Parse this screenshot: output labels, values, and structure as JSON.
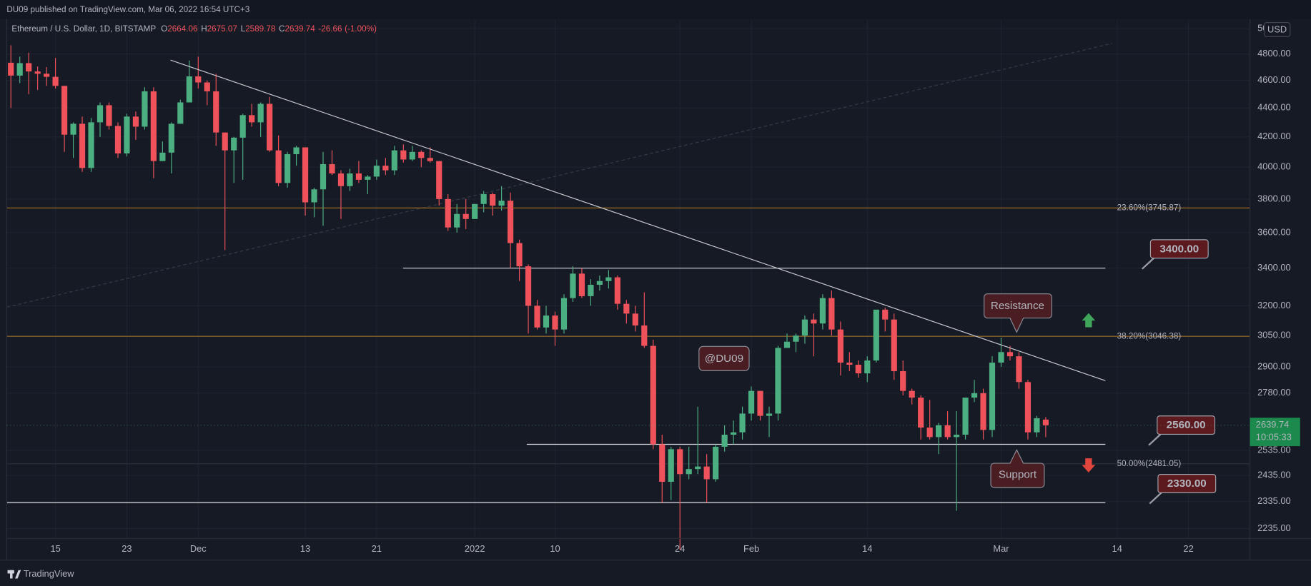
{
  "header": {
    "published": "DU09 published on TradingView.com, Mar 06, 2022 16:54 UTC+3"
  },
  "footer": {
    "brand": "TradingView"
  },
  "chart_data": {
    "type": "candlestick",
    "title": "Ethereum / U.S. Dollar, 1D, BITSTAMP",
    "ohlc_labels": [
      "O",
      "H",
      "L",
      "C"
    ],
    "change": -26.66,
    "change_percent": {
      "value": -1.0,
      "label": "(-1.00%)"
    },
    "currency": "USD",
    "countdown": "10:05:33",
    "up_color": "#4caf82",
    "down_color": "#f0525b",
    "log_scale": true,
    "grid": true,
    "categories": [
      null,
      null,
      null,
      null,
      null,
      "15",
      null,
      null,
      null,
      null,
      null,
      null,
      null,
      "23",
      null,
      null,
      null,
      null,
      null,
      null,
      null,
      "Dec",
      null,
      null,
      null,
      null,
      null,
      null,
      null,
      null,
      null,
      null,
      null,
      "13",
      null,
      null,
      null,
      null,
      null,
      null,
      null,
      "21",
      null,
      null,
      null,
      null,
      null,
      null,
      null,
      null,
      null,
      null,
      "2022",
      null,
      null,
      null,
      null,
      null,
      null,
      null,
      null,
      "10",
      null,
      null,
      null,
      null,
      null,
      null,
      null,
      null,
      null,
      null,
      null,
      null,
      null,
      "24",
      null,
      null,
      null,
      null,
      null,
      null,
      null,
      "Feb",
      null,
      null,
      null,
      null,
      null,
      null,
      null,
      null,
      null,
      null,
      null,
      null,
      "14",
      null,
      null,
      null,
      null,
      null,
      null,
      null,
      null,
      null,
      null,
      null,
      null,
      null,
      null,
      "Mar",
      null,
      null,
      null,
      null,
      null,
      null,
      null,
      null,
      null,
      null,
      null,
      null,
      "14",
      null,
      null,
      null,
      null,
      null,
      null,
      null,
      "22",
      null,
      null,
      null,
      null,
      null,
      null
    ],
    "candles": [
      [
        4733,
        4868,
        4400,
        4636
      ],
      [
        4636,
        4780,
        4580,
        4730
      ],
      [
        4730,
        4810,
        4500,
        4667
      ],
      [
        4667,
        4705,
        4530,
        4650
      ],
      [
        4650,
        4700,
        4560,
        4627
      ],
      [
        4627,
        4770,
        4540,
        4560
      ],
      [
        4560,
        4560,
        4100,
        4215
      ],
      [
        4215,
        4300,
        4060,
        4290
      ],
      [
        4290,
        4340,
        3970,
        3995
      ],
      [
        3995,
        4330,
        3970,
        4300
      ],
      [
        4300,
        4440,
        4200,
        4420
      ],
      [
        4420,
        4440,
        4250,
        4275
      ],
      [
        4275,
        4300,
        4060,
        4090
      ],
      [
        4090,
        4360,
        4070,
        4340
      ],
      [
        4340,
        4375,
        4180,
        4270
      ],
      [
        4270,
        4550,
        4250,
        4520
      ],
      [
        4520,
        4550,
        3930,
        4040
      ],
      [
        4040,
        4170,
        4040,
        4095
      ],
      [
        4095,
        4300,
        3960,
        4290
      ],
      [
        4290,
        4460,
        4290,
        4440
      ],
      [
        4440,
        4750,
        4440,
        4630
      ],
      [
        4630,
        4780,
        4540,
        4585
      ],
      [
        4585,
        4600,
        4420,
        4520
      ],
      [
        4520,
        4650,
        4140,
        4230
      ],
      [
        4230,
        4230,
        3500,
        4110
      ],
      [
        4110,
        4200,
        3900,
        4195
      ],
      [
        4195,
        4360,
        3920,
        4350
      ],
      [
        4350,
        4430,
        4270,
        4300
      ],
      [
        4300,
        4440,
        4200,
        4430
      ],
      [
        4430,
        4480,
        4100,
        4110
      ],
      [
        4110,
        4210,
        3880,
        3900
      ],
      [
        3900,
        4100,
        3870,
        4085
      ],
      [
        4085,
        4140,
        4010,
        4130
      ],
      [
        4130,
        4130,
        3700,
        3780
      ],
      [
        3780,
        3870,
        3690,
        3860
      ],
      [
        3860,
        4100,
        3640,
        4020
      ],
      [
        4020,
        4110,
        3950,
        3960
      ],
      [
        3960,
        3980,
        3680,
        3880
      ],
      [
        3880,
        3990,
        3850,
        3960
      ],
      [
        3960,
        4040,
        3900,
        3920
      ],
      [
        3920,
        3950,
        3830,
        3940
      ],
      [
        3940,
        4050,
        3920,
        4010
      ],
      [
        4010,
        4060,
        3950,
        3980
      ],
      [
        3980,
        4140,
        3950,
        4110
      ],
      [
        4110,
        4150,
        4030,
        4050
      ],
      [
        4050,
        4140,
        4040,
        4100
      ],
      [
        4100,
        4110,
        4000,
        4060
      ],
      [
        4060,
        4130,
        4030,
        4040
      ],
      [
        4040,
        4040,
        3760,
        3800
      ],
      [
        3800,
        3830,
        3610,
        3630
      ],
      [
        3630,
        3770,
        3600,
        3710
      ],
      [
        3710,
        3800,
        3620,
        3680
      ],
      [
        3680,
        3770,
        3680,
        3770
      ],
      [
        3770,
        3850,
        3720,
        3830
      ],
      [
        3830,
        3840,
        3700,
        3760
      ],
      [
        3760,
        3880,
        3730,
        3790
      ],
      [
        3790,
        3840,
        3400,
        3540
      ],
      [
        3540,
        3560,
        3330,
        3410
      ],
      [
        3410,
        3420,
        3060,
        3200
      ],
      [
        3200,
        3230,
        3080,
        3090
      ],
      [
        3090,
        3200,
        3060,
        3150
      ],
      [
        3150,
        3170,
        3000,
        3080
      ],
      [
        3080,
        3260,
        3060,
        3240
      ],
      [
        3240,
        3410,
        3220,
        3370
      ],
      [
        3370,
        3400,
        3240,
        3250
      ],
      [
        3250,
        3340,
        3200,
        3310
      ],
      [
        3310,
        3360,
        3280,
        3330
      ],
      [
        3330,
        3390,
        3290,
        3350
      ],
      [
        3350,
        3360,
        3180,
        3210
      ],
      [
        3210,
        3230,
        3110,
        3160
      ],
      [
        3160,
        3200,
        3070,
        3100
      ],
      [
        3100,
        3270,
        2990,
        3000
      ],
      [
        3000,
        3030,
        2540,
        2560
      ],
      [
        2560,
        2600,
        2330,
        2410
      ],
      [
        2410,
        2550,
        2340,
        2540
      ],
      [
        2540,
        2550,
        2160,
        2440
      ],
      [
        2440,
        2550,
        2420,
        2460
      ],
      [
        2460,
        2720,
        2440,
        2470
      ],
      [
        2470,
        2520,
        2330,
        2420
      ],
      [
        2420,
        2560,
        2410,
        2550
      ],
      [
        2550,
        2640,
        2530,
        2600
      ],
      [
        2600,
        2660,
        2560,
        2610
      ],
      [
        2610,
        2720,
        2580,
        2690
      ],
      [
        2690,
        2810,
        2660,
        2790
      ],
      [
        2790,
        2790,
        2660,
        2680
      ],
      [
        2680,
        2720,
        2590,
        2690
      ],
      [
        2690,
        3000,
        2660,
        2990
      ],
      [
        2990,
        3060,
        2990,
        3020
      ],
      [
        3020,
        3060,
        2970,
        3050
      ],
      [
        3050,
        3150,
        3010,
        3130
      ],
      [
        3130,
        3160,
        2950,
        3110
      ],
      [
        3110,
        3260,
        3080,
        3240
      ],
      [
        3240,
        3280,
        3050,
        3080
      ],
      [
        3080,
        3120,
        2860,
        2920
      ],
      [
        2920,
        2970,
        2880,
        2910
      ],
      [
        2910,
        2930,
        2850,
        2870
      ],
      [
        2870,
        2950,
        2830,
        2930
      ],
      [
        2930,
        3180,
        2920,
        3180
      ],
      [
        3180,
        3190,
        3070,
        3130
      ],
      [
        3130,
        3160,
        2840,
        2880
      ],
      [
        2880,
        2930,
        2770,
        2790
      ],
      [
        2790,
        2800,
        2730,
        2760
      ],
      [
        2760,
        2770,
        2580,
        2630
      ],
      [
        2630,
        2750,
        2580,
        2590
      ],
      [
        2590,
        2650,
        2520,
        2640
      ],
      [
        2640,
        2700,
        2580,
        2590
      ],
      [
        2590,
        2700,
        2300,
        2600
      ],
      [
        2600,
        2760,
        2580,
        2760
      ],
      [
        2760,
        2840,
        2740,
        2780
      ],
      [
        2780,
        2800,
        2580,
        2620
      ],
      [
        2620,
        2950,
        2590,
        2920
      ],
      [
        2920,
        3040,
        2900,
        2970
      ],
      [
        2970,
        3000,
        2930,
        2950
      ],
      [
        2950,
        2970,
        2800,
        2830
      ],
      [
        2830,
        2840,
        2580,
        2610
      ],
      [
        2610,
        2680,
        2590,
        2670
      ],
      [
        2664.06,
        2675.07,
        2589.78,
        2639.74
      ],
      null,
      null,
      null,
      null,
      null,
      null,
      null,
      null,
      null,
      null,
      null,
      null,
      null,
      null,
      null,
      null,
      null,
      null,
      null,
      null,
      null,
      null
    ],
    "ylim": [
      2200,
      5070
    ],
    "yticks": [
      {
        "value": 5000,
        "label": "5000.00"
      },
      {
        "value": 4800,
        "label": "4800.00"
      },
      {
        "value": 4600,
        "label": "4600.00"
      },
      {
        "value": 4400,
        "label": "4400.00"
      },
      {
        "value": 4200,
        "label": "4200.00"
      },
      {
        "value": 4000,
        "label": "4000.00"
      },
      {
        "value": 3800,
        "label": "3800.00"
      },
      {
        "value": 3600,
        "label": "3600.00"
      },
      {
        "value": 3400,
        "label": "3400.00"
      },
      {
        "value": 3200,
        "label": "3200.00"
      },
      {
        "value": 3050,
        "label": "3050.00"
      },
      {
        "value": 2900,
        "label": "2900.00"
      },
      {
        "value": 2780,
        "label": "2780.00"
      },
      {
        "value": 2535,
        "label": "2535.00"
      },
      {
        "value": 2435,
        "label": "2435.00"
      },
      {
        "value": 2335,
        "label": "2335.00"
      },
      {
        "value": 2235,
        "label": "2235.00"
      }
    ],
    "fib_levels": [
      {
        "value": 3745.87,
        "label": "23.60%(3745.87)"
      },
      {
        "value": 3046.38,
        "label": "38.20%(3046.38)"
      },
      {
        "value": 2481.05,
        "label": "50.00%(2481.05)"
      }
    ],
    "levels": [
      {
        "value": 3400,
        "label": "3400.00"
      },
      {
        "value": 2560,
        "label": "2560.00"
      },
      {
        "value": 2330,
        "label": "2330.00"
      }
    ],
    "annotations": {
      "resistance": "Resistance",
      "support": "Support",
      "author": "@DU09"
    }
  }
}
